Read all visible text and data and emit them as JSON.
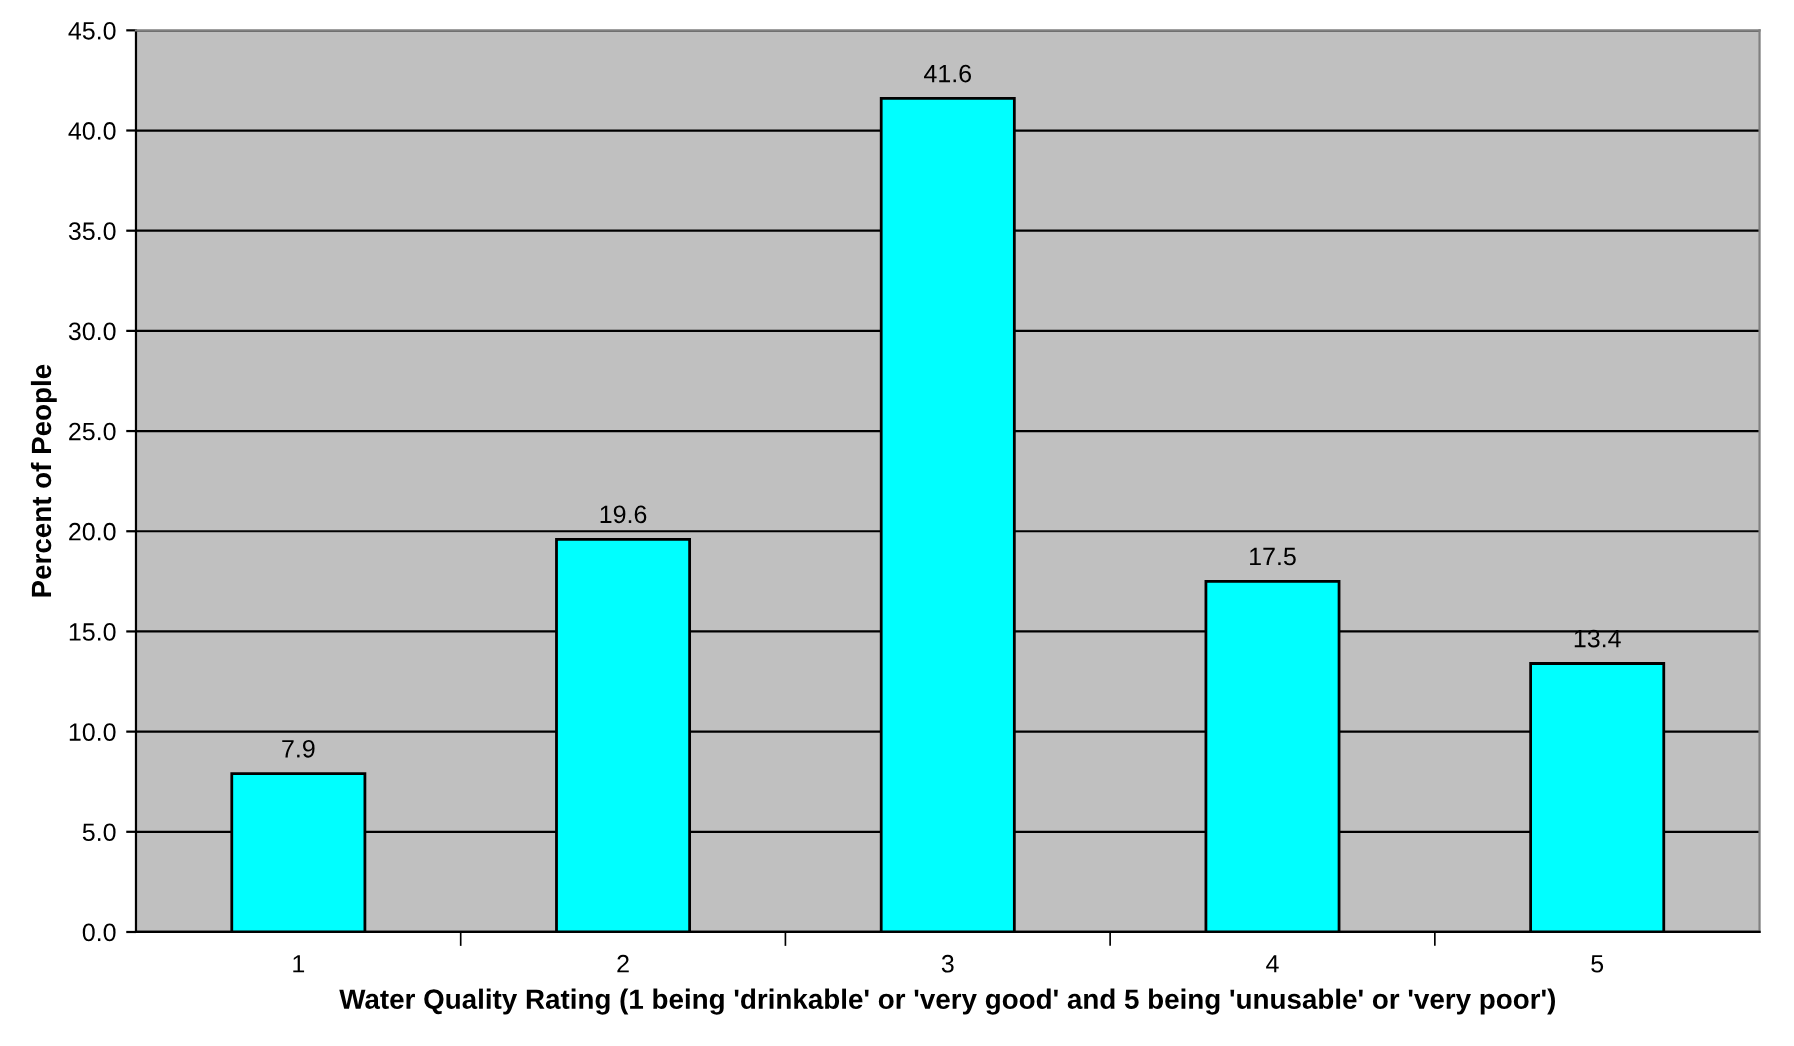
{
  "chart_data": {
    "type": "bar",
    "xlabel": "Water Quality Rating (1 being 'drinkable' or 'very good' and 5 being 'unusable' or 'very poor')",
    "ylabel": "Percent of People",
    "categories": [
      "1",
      "2",
      "3",
      "4",
      "5"
    ],
    "values": [
      7.9,
      19.6,
      41.6,
      17.5,
      13.4
    ],
    "color": "#00ffff",
    "data_labels": true,
    "ylim": [
      0,
      45
    ],
    "yticks": [
      {
        "value": 0,
        "label": "0.0"
      },
      {
        "value": 5,
        "label": "5.0"
      },
      {
        "value": 10,
        "label": "10.0"
      },
      {
        "value": 15,
        "label": "15.0"
      },
      {
        "value": 20,
        "label": "20.0"
      },
      {
        "value": 25,
        "label": "25.0"
      },
      {
        "value": 30,
        "label": "30.0"
      },
      {
        "value": 35,
        "label": "35.0"
      },
      {
        "value": 40,
        "label": "40.0"
      },
      {
        "value": 45,
        "label": "45.0"
      }
    ],
    "grid": "y"
  }
}
